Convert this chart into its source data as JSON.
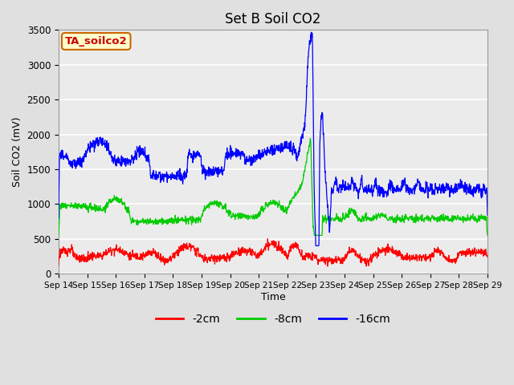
{
  "title": "Set B Soil CO2",
  "xlabel": "Time",
  "ylabel": "Soil CO2 (mV)",
  "ylim": [
    0,
    3500
  ],
  "legend_label": "TA_soilco2",
  "series_labels": [
    "-2cm",
    "-8cm",
    "-16cm"
  ],
  "series_colors": [
    "#ff0000",
    "#00cc00",
    "#0000ff"
  ],
  "x_tick_labels": [
    "Sep 14",
    "Sep 15",
    "Sep 16",
    "Sep 17",
    "Sep 18",
    "Sep 19",
    "Sep 20",
    "Sep 21",
    "Sep 22",
    "Sep 23",
    "Sep 24",
    "Sep 25",
    "Sep 26",
    "Sep 27",
    "Sep 28",
    "Sep 29"
  ],
  "background_color": "#e0e0e0",
  "plot_bg_color": "#ebebeb",
  "grid_color": "#ffffff",
  "annotation_box_facecolor": "#ffffcc",
  "annotation_box_edgecolor": "#cc6600",
  "annotation_text_color": "#cc0000",
  "figsize": [
    6.4,
    4.8
  ],
  "dpi": 100
}
